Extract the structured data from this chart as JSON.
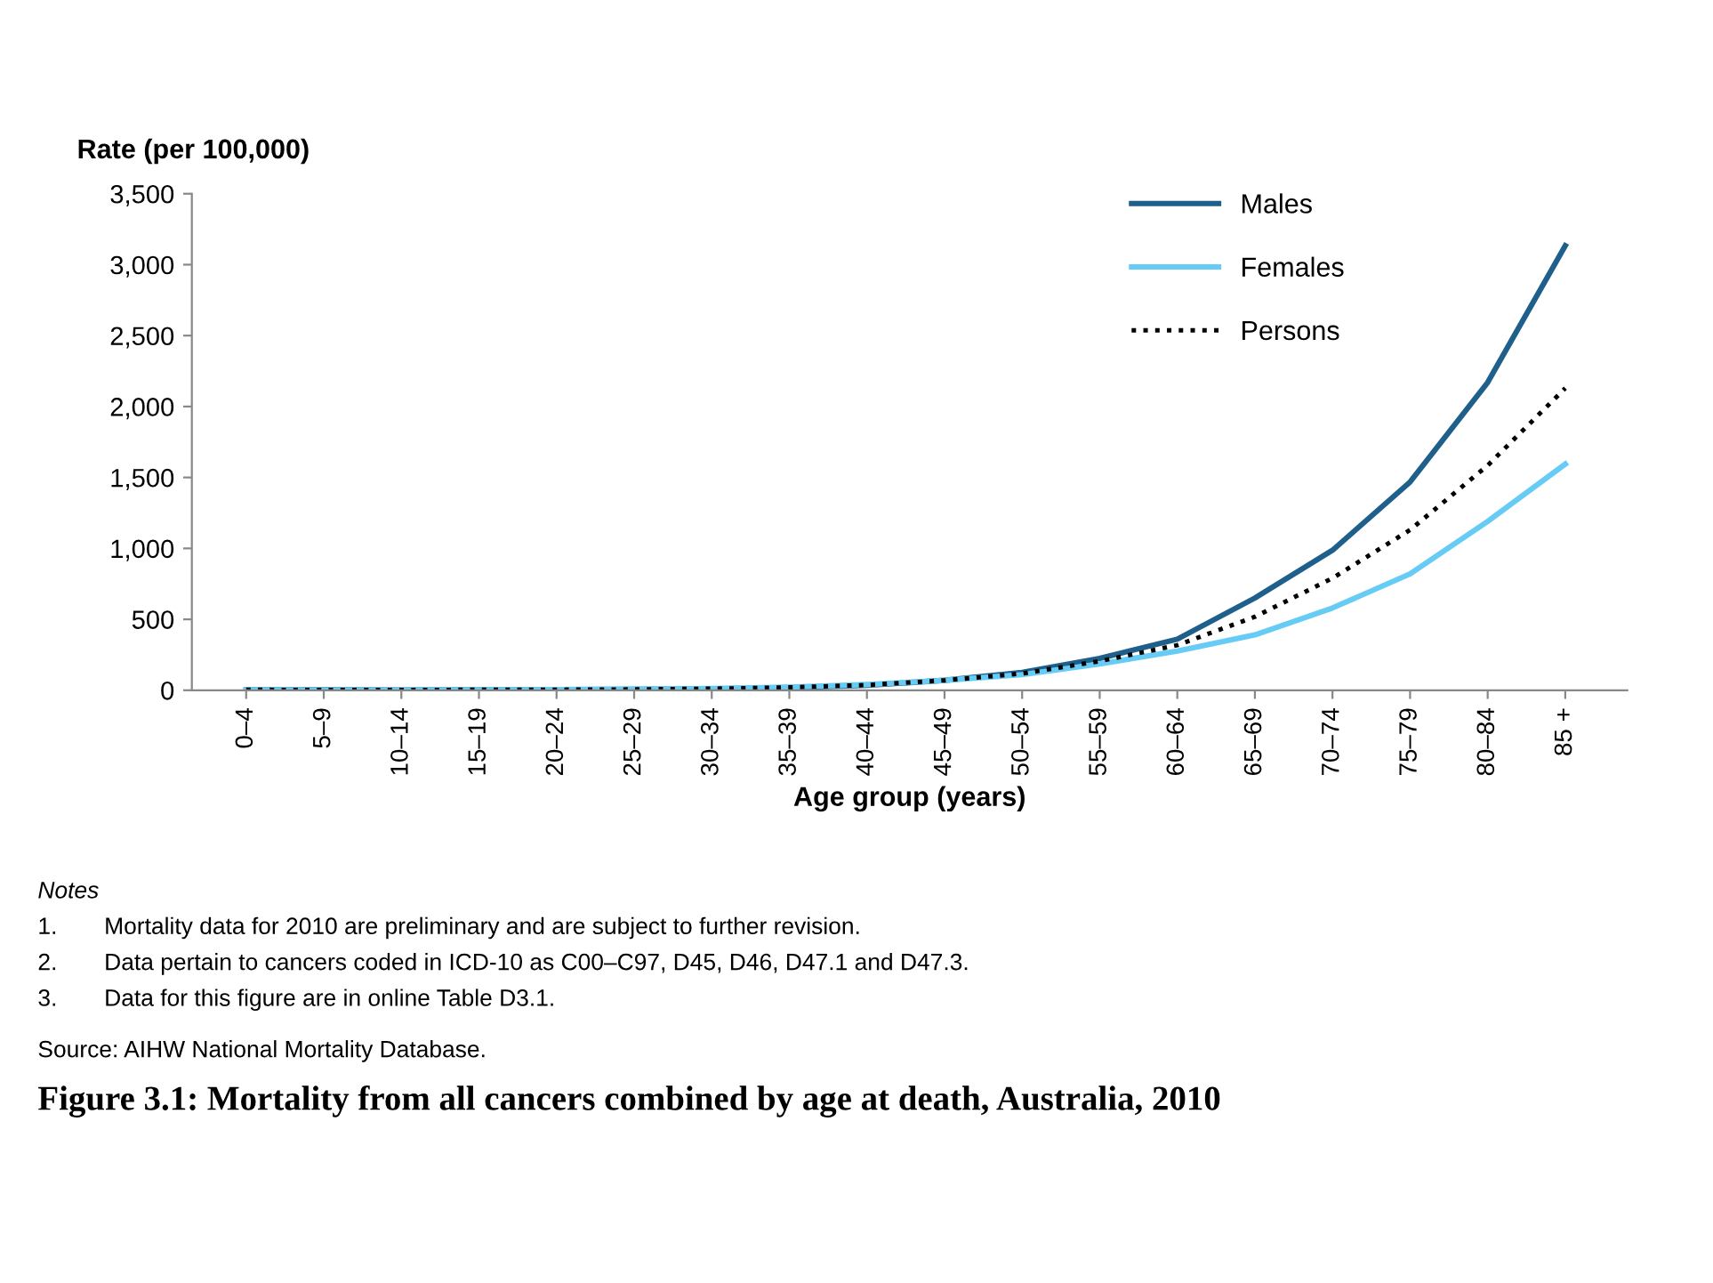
{
  "chart_data": {
    "type": "line",
    "title": "Figure 3.1: Mortality from all cancers combined by age at death, Australia, 2010",
    "xlabel": "Age group (years)",
    "ylabel": "Rate (per 100,000)",
    "categories": [
      "0–4",
      "5–9",
      "10–14",
      "15–19",
      "20–24",
      "25–29",
      "30–34",
      "35–39",
      "40–44",
      "45–49",
      "50–54",
      "55–59",
      "60–64",
      "65–69",
      "70–74",
      "75–79",
      "80–84",
      "85 +"
    ],
    "series": [
      {
        "name": "Males",
        "color": "#1f5f8b",
        "line_style": "solid",
        "values": [
          3,
          3,
          2,
          3,
          4,
          6,
          10,
          18,
          35,
          70,
          125,
          225,
          360,
          650,
          987,
          1468,
          2170,
          3133
        ]
      },
      {
        "name": "Females",
        "color": "#66ccf5",
        "line_style": "solid",
        "values": [
          3,
          2,
          2,
          3,
          4,
          7,
          12,
          22,
          40,
          70,
          110,
          185,
          276,
          390,
          580,
          820,
          1190,
          1594
        ]
      },
      {
        "name": "Persons",
        "color": "#000000",
        "line_style": "dotted",
        "values": [
          3,
          2,
          2,
          3,
          4,
          6,
          11,
          20,
          37,
          70,
          118,
          205,
          318,
          518,
          790,
          1130,
          1585,
          2129
        ]
      }
    ],
    "ylim": [
      0,
      3500
    ],
    "yticks": [
      {
        "value": 0,
        "label": "0"
      },
      {
        "value": 500,
        "label": "500"
      },
      {
        "value": 1000,
        "label": "1,000"
      },
      {
        "value": 1500,
        "label": "1,500"
      },
      {
        "value": 2000,
        "label": "2,000"
      },
      {
        "value": 2500,
        "label": "2,500"
      },
      {
        "value": 3000,
        "label": "3,000"
      },
      {
        "value": 3500,
        "label": "3,500"
      }
    ],
    "grid": false,
    "legend": "top right",
    "marker": "none",
    "annotations": [
      "Notes",
      "1.  Mortality data for 2010 are preliminary and are subject to further revision.",
      "2.  Data pertain to cancers coded in ICD-10 as C00–C97, D45, D46, D47.1 and D47.3.",
      "3.  Data for this figure are in online Table D3.1.",
      "Source: AIHW National Mortality Database."
    ]
  }
}
